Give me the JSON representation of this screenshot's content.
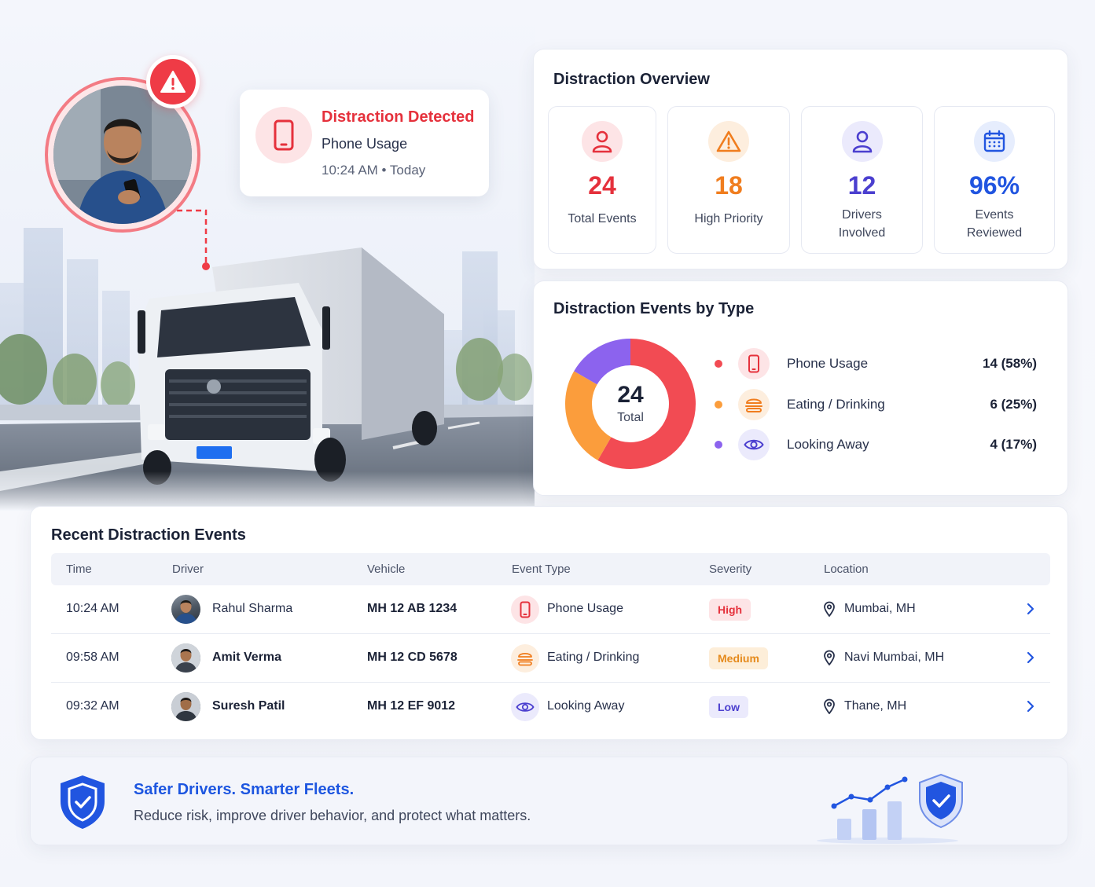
{
  "alert": {
    "title": "Distraction Detected",
    "type": "Phone Usage",
    "time": "10:24 AM • Today",
    "vehicle_plate_color": "#1f6ff0"
  },
  "overview": {
    "title": "Distraction Overview",
    "stats": [
      {
        "value": "24",
        "label": "Total Events",
        "color": "#e5313c",
        "icon": "user-icon"
      },
      {
        "value": "18",
        "label": "High Priority",
        "color": "#f07d1e",
        "icon": "warning-icon"
      },
      {
        "value": "12",
        "label": "Drivers Involved",
        "color": "#4b3fcf",
        "icon": "user-icon"
      },
      {
        "value": "96%",
        "label": "Events Reviewed",
        "color": "#2155e0",
        "icon": "calendar-icon"
      }
    ]
  },
  "by_type": {
    "title": "Distraction Events by Type",
    "total_value": "24",
    "total_label": "Total"
  },
  "chart_data": {
    "type": "pie",
    "title": "Distraction Events by Type",
    "categories": [
      "Phone Usage",
      "Eating / Drinking",
      "Looking Away"
    ],
    "values": [
      14,
      6,
      4
    ],
    "labels": [
      "14 (58%)",
      "6 (25%)",
      "4 (17%)"
    ],
    "colors": [
      "#f24b53",
      "#fb9d3c",
      "#8c63ee"
    ],
    "icons": [
      "phone-icon",
      "burger-icon",
      "eye-icon"
    ],
    "legend": "right"
  },
  "recent": {
    "title": "Recent Distraction Events",
    "columns": [
      "Time",
      "Driver",
      "Vehicle",
      "Event Type",
      "Severity",
      "Location"
    ],
    "rows": [
      {
        "time": "10:24 AM",
        "driver": "Rahul Sharma",
        "vehicle": "MH 12 AB 1234",
        "event": "Phone Usage",
        "event_icon": "phone-icon",
        "severity": "High",
        "location": "Mumbai, MH"
      },
      {
        "time": "09:58 AM",
        "driver": "Amit Verma",
        "vehicle": "MH 12 CD 5678",
        "event": "Eating / Drinking",
        "event_icon": "burger-icon",
        "severity": "Medium",
        "location": "Navi Mumbai, MH"
      },
      {
        "time": "09:32 AM",
        "driver": "Suresh Patil",
        "vehicle": "MH 12 EF 9012",
        "event": "Looking Away",
        "event_icon": "eye-icon",
        "severity": "Low",
        "location": "Thane, MH"
      }
    ],
    "severity_colors": {
      "High": {
        "bg": "#fde4e6",
        "fg": "#e5313c"
      },
      "Medium": {
        "bg": "#fdeed9",
        "fg": "#e58a1c"
      },
      "Low": {
        "bg": "#ebeafc",
        "fg": "#4b3fcf"
      }
    }
  },
  "footer": {
    "title": "Safer Drivers. Smarter Fleets.",
    "subtitle": "Reduce risk, improve driver behavior, and protect what matters."
  },
  "colors": {
    "accent_blue": "#1d56e0",
    "alert_red": "#e5313c"
  }
}
